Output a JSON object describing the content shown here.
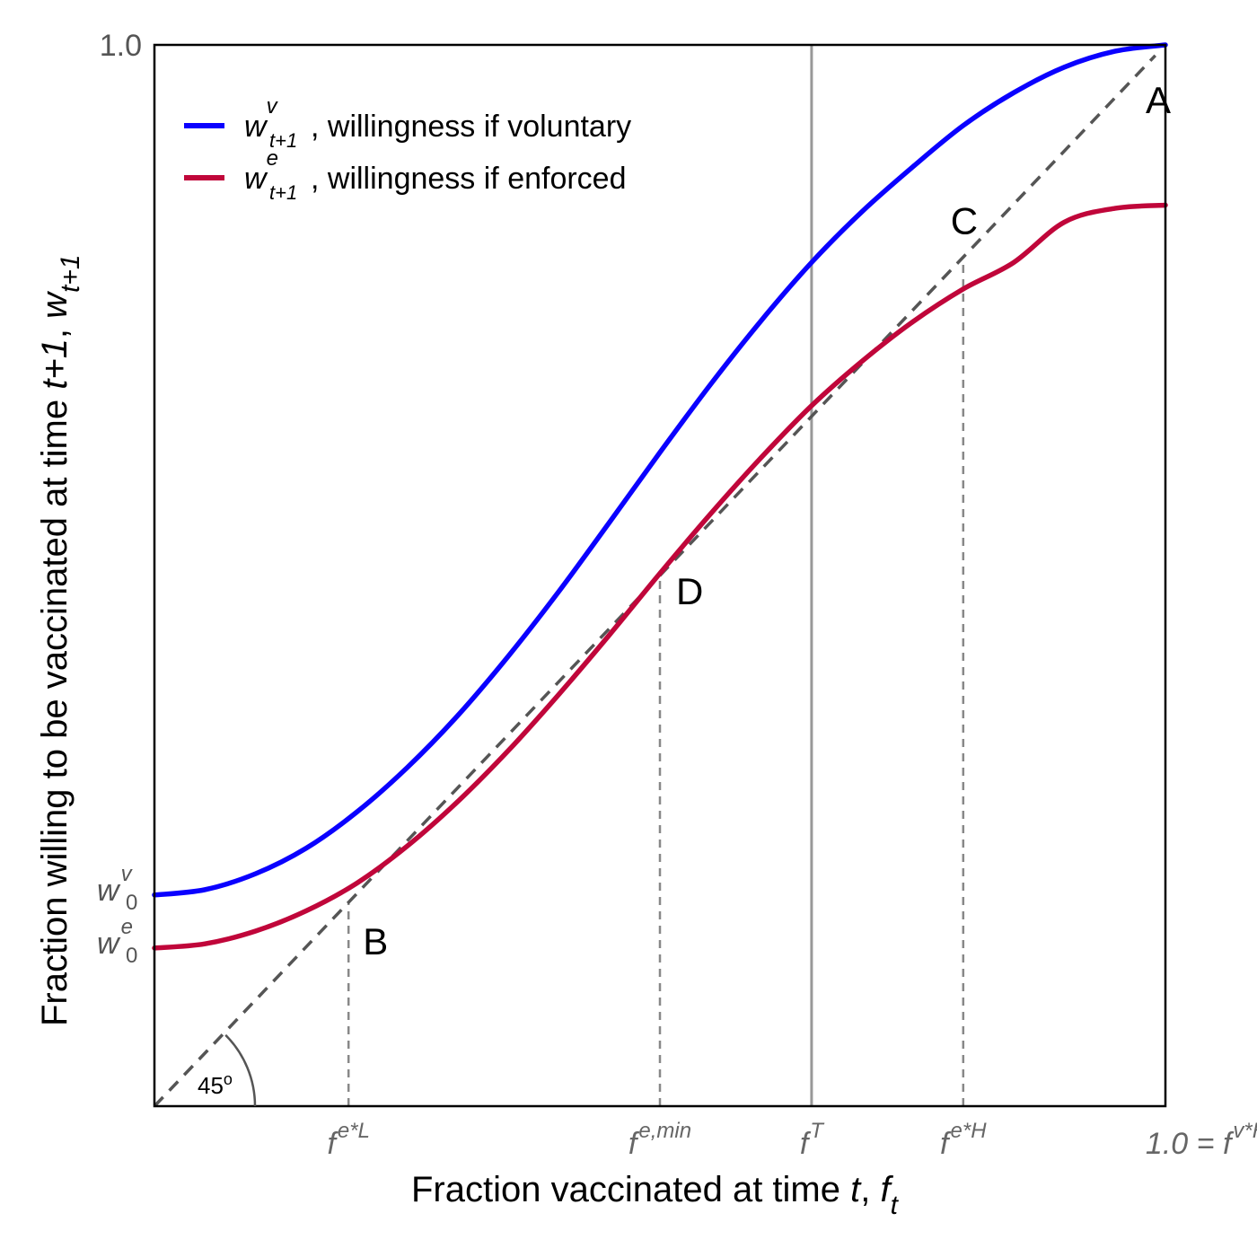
{
  "chart_data": {
    "type": "line",
    "xlim": [
      0,
      1
    ],
    "ylim": [
      0,
      1
    ],
    "grid": false,
    "legend_position": "top-left",
    "series": [
      {
        "name": "w^v_{t+1}, willingness if voluntary",
        "color": "#0a00ff",
        "x": [
          0.0,
          0.05,
          0.1,
          0.15,
          0.2,
          0.25,
          0.3,
          0.35,
          0.4,
          0.45,
          0.5,
          0.55,
          0.6,
          0.65,
          0.7,
          0.75,
          0.8,
          0.85,
          0.9,
          0.95,
          1.0
        ],
        "y": [
          0.199,
          0.204,
          0.219,
          0.243,
          0.277,
          0.319,
          0.368,
          0.424,
          0.485,
          0.55,
          0.616,
          0.68,
          0.74,
          0.795,
          0.843,
          0.885,
          0.924,
          0.955,
          0.979,
          0.994,
          1.0
        ]
      },
      {
        "name": "w^e_{t+1}, willingness if enforced",
        "color": "#c0063a",
        "x": [
          0.0,
          0.05,
          0.1,
          0.15,
          0.2,
          0.25,
          0.3,
          0.35,
          0.4,
          0.45,
          0.5,
          0.55,
          0.6,
          0.65,
          0.7,
          0.75,
          0.8,
          0.85,
          0.9,
          0.95,
          1.0
        ],
        "y": [
          0.149,
          0.153,
          0.165,
          0.184,
          0.21,
          0.245,
          0.287,
          0.335,
          0.388,
          0.444,
          0.502,
          0.558,
          0.611,
          0.66,
          0.702,
          0.739,
          0.77,
          0.795,
          0.833,
          0.846,
          0.849
        ]
      },
      {
        "name": "45° line",
        "color": "#555555",
        "style": "dashed",
        "x": [
          0.0,
          0.99
        ],
        "y": [
          0.0,
          0.99
        ]
      }
    ],
    "reference_lines": [
      {
        "x": 0.65,
        "label": "f^T",
        "style": "solid",
        "color": "#999999"
      },
      {
        "x": 0.192,
        "label": "f^{e*L}",
        "style": "dashed",
        "color": "#888888",
        "to_y": 0.192
      },
      {
        "x": 0.5,
        "label": "f^{e,min}",
        "style": "dashed",
        "color": "#888888",
        "to_y": 0.5
      },
      {
        "x": 0.8,
        "label": "f^{e*H}",
        "style": "dashed",
        "color": "#888888",
        "to_y": 0.8
      }
    ],
    "points": [
      {
        "label": "A",
        "x": 1.0,
        "y": 1.0
      },
      {
        "label": "B",
        "x": 0.192,
        "y": 0.192
      },
      {
        "label": "C",
        "x": 0.8,
        "y": 0.8
      },
      {
        "label": "D",
        "x": 0.5,
        "y": 0.5
      }
    ],
    "y_ticks": [
      {
        "main": "1.0",
        "value": 1.0
      },
      {
        "main": "w",
        "sup": "v",
        "sub": "0",
        "value": 0.199
      },
      {
        "main": "w",
        "sup": "e",
        "sub": "0",
        "value": 0.149
      }
    ],
    "x_ticks": [
      {
        "main": "f",
        "sup": "e*L",
        "value": 0.192
      },
      {
        "main": "f",
        "sup": "e,min",
        "value": 0.5
      },
      {
        "main": "f",
        "sup": "T",
        "value": 0.65
      },
      {
        "main": "f",
        "sup": "e*H",
        "value": 0.8
      },
      {
        "prefix": "1.0 = ",
        "main": "f",
        "sup": "v*H",
        "value": 1.0
      }
    ],
    "xlabel": {
      "text": "Fraction vaccinated at time ",
      "var1": "t",
      "sep": ", ",
      "var2": "f",
      "var2_sub": "t"
    },
    "ylabel": {
      "text": "Fraction willing to be vaccinated at time ",
      "var1": "t+1",
      "sep": ", ",
      "var2": "w",
      "var2_sub": "t+1"
    },
    "angle_annotation": {
      "main": "45",
      "sup": "o"
    },
    "legend": [
      {
        "main": "w",
        "sup": "v",
        "sub": "t+1",
        "text": ", willingness if voluntary"
      },
      {
        "main": "w",
        "sup": "e",
        "sub": "t+1",
        "text": ", willingness if enforced"
      }
    ]
  }
}
